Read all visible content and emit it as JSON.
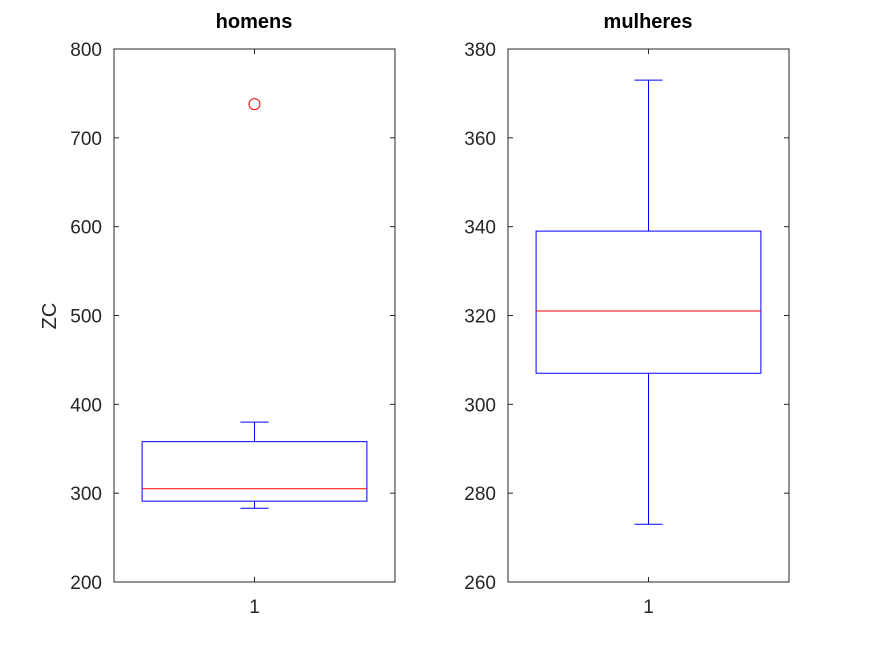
{
  "chart_data": [
    {
      "type": "box",
      "title": "homens",
      "ylabel": "ZC",
      "xlabel": "",
      "ylim": [
        200,
        800
      ],
      "yticks": [
        "200",
        "300",
        "400",
        "500",
        "600",
        "700",
        "800"
      ],
      "categories": [
        "1"
      ],
      "box": {
        "whisker_low": 283,
        "q1": 291,
        "median": 305,
        "q3": 358,
        "whisker_high": 380
      },
      "outliers": [
        738
      ],
      "colors": {
        "box": "#0000ff",
        "median": "#ff0000",
        "outlier": "#ff0000",
        "axes": "#262626"
      }
    },
    {
      "type": "box",
      "title": "mulheres",
      "ylabel": "",
      "xlabel": "",
      "ylim": [
        260,
        380
      ],
      "yticks": [
        "260",
        "280",
        "300",
        "320",
        "340",
        "360",
        "380"
      ],
      "categories": [
        "1"
      ],
      "box": {
        "whisker_low": 273,
        "q1": 307,
        "median": 321,
        "q3": 339,
        "whisker_high": 373
      },
      "outliers": [],
      "colors": {
        "box": "#0000ff",
        "median": "#ff0000",
        "outlier": "#ff0000",
        "axes": "#262626"
      }
    }
  ]
}
